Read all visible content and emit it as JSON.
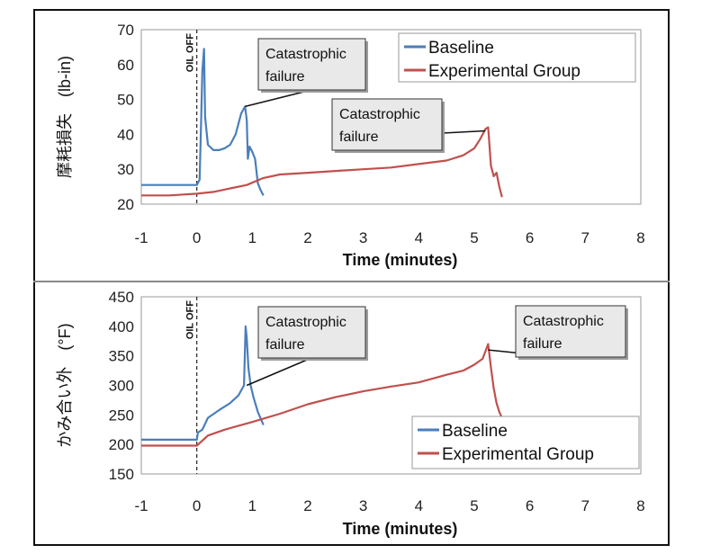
{
  "chart_data": [
    {
      "type": "line",
      "xlabel": "Time (minutes)",
      "ylabel": "摩耗損失　(lb-in)",
      "xlim": [
        -1,
        8
      ],
      "ylim": [
        20,
        70
      ],
      "xticks": [
        -1,
        0,
        1,
        2,
        3,
        4,
        5,
        6,
        7,
        8
      ],
      "yticks": [
        20,
        30,
        40,
        50,
        60,
        70
      ],
      "legend_position": "top-right",
      "vline_label": "OIL OFF",
      "annotations": [
        {
          "text": "Catastrophic\nfailure",
          "x": 0.87,
          "y": 48
        },
        {
          "text": "Catastrophic\nfailure",
          "x": 5.2,
          "y": 41
        }
      ],
      "series": [
        {
          "name": "Baseline",
          "color": "#4a7ebb",
          "x": [
            -1,
            0,
            0.05,
            0.08,
            0.1,
            0.13,
            0.15,
            0.2,
            0.3,
            0.4,
            0.5,
            0.6,
            0.7,
            0.8,
            0.87,
            0.9,
            0.92,
            0.95,
            1.0,
            1.05,
            1.1,
            1.15,
            1.2
          ],
          "y": [
            25.5,
            25.5,
            27,
            45,
            58,
            64.5,
            45,
            37,
            35.5,
            35.5,
            36,
            37,
            40,
            46,
            48,
            44,
            33,
            36.5,
            35,
            33,
            26,
            24,
            22.5
          ]
        },
        {
          "name": "Experimental Group",
          "color": "#c0504d",
          "x": [
            -1,
            -0.5,
            0,
            0.3,
            0.6,
            0.9,
            1.2,
            1.5,
            2,
            2.5,
            3,
            3.5,
            4,
            4.5,
            4.8,
            5.0,
            5.1,
            5.2,
            5.25,
            5.3,
            5.35,
            5.4,
            5.45,
            5.5
          ],
          "y": [
            22.5,
            22.5,
            23,
            23.5,
            24.5,
            25.5,
            27.5,
            28.5,
            29,
            29.5,
            30,
            30.5,
            31.5,
            32.5,
            34,
            36,
            38.5,
            41.5,
            42,
            31,
            28,
            29,
            25,
            22
          ]
        }
      ]
    },
    {
      "type": "line",
      "xlabel": "Time (minutes)",
      "ylabel": "かみ合い外　(°F)",
      "xlim": [
        -1,
        8
      ],
      "ylim": [
        150,
        450
      ],
      "xticks": [
        -1,
        0,
        1,
        2,
        3,
        4,
        5,
        6,
        7,
        8
      ],
      "yticks": [
        150,
        200,
        250,
        300,
        350,
        400,
        450
      ],
      "legend_position": "bottom-right",
      "vline_label": "OIL OFF",
      "annotations": [
        {
          "text": "Catastrophic\nfailure",
          "x": 0.9,
          "y": 300
        },
        {
          "text": "Catastrophic\nfailure",
          "x": 5.25,
          "y": 360
        }
      ],
      "series": [
        {
          "name": "Baseline",
          "color": "#4a7ebb",
          "x": [
            -1,
            0,
            0.02,
            0.1,
            0.2,
            0.4,
            0.6,
            0.75,
            0.85,
            0.88,
            0.9,
            0.93,
            0.97,
            1.02,
            1.1,
            1.2
          ],
          "y": [
            208,
            208,
            220,
            225,
            245,
            258,
            270,
            283,
            300,
            400,
            380,
            330,
            300,
            280,
            255,
            233
          ]
        },
        {
          "name": "Experimental Group",
          "color": "#c0504d",
          "x": [
            -1,
            -0.5,
            0,
            0.2,
            0.5,
            1,
            1.5,
            2,
            2.5,
            3,
            3.5,
            4,
            4.5,
            4.8,
            5.0,
            5.15,
            5.25,
            5.3,
            5.35,
            5.4,
            5.45,
            5.5
          ],
          "y": [
            198,
            198,
            198,
            215,
            225,
            238,
            252,
            268,
            280,
            290,
            298,
            305,
            318,
            325,
            335,
            345,
            370,
            330,
            295,
            270,
            255,
            245
          ]
        }
      ]
    }
  ]
}
